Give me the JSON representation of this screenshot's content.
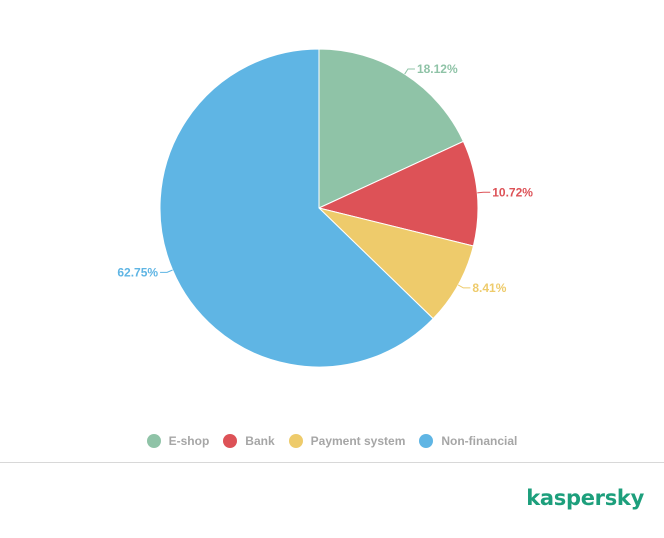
{
  "chart_data": {
    "type": "pie",
    "title": "",
    "start_angle_deg": 0,
    "direction": "clockwise",
    "legend_position": "bottom",
    "slices": [
      {
        "label": "E-shop",
        "value": 18.12,
        "value_label": "18.12%",
        "color": "#8fc3a7"
      },
      {
        "label": "Bank",
        "value": 10.72,
        "value_label": "10.72%",
        "color": "#dd5257"
      },
      {
        "label": "Payment system",
        "value": 8.41,
        "value_label": "8.41%",
        "color": "#eecb6b"
      },
      {
        "label": "Non-financial",
        "value": 62.75,
        "value_label": "62.75%",
        "color": "#5fb5e4"
      }
    ]
  },
  "legend": {
    "text_color": "#a6a6a6",
    "items": [
      {
        "label": "E-shop",
        "color": "#8fc3a7"
      },
      {
        "label": "Bank",
        "color": "#dd5257"
      },
      {
        "label": "Payment system",
        "color": "#eecb6b"
      },
      {
        "label": "Non-financial",
        "color": "#5fb5e4"
      }
    ]
  },
  "brand": {
    "logo_text": "kaspersky",
    "color": "#1d9f7c"
  }
}
